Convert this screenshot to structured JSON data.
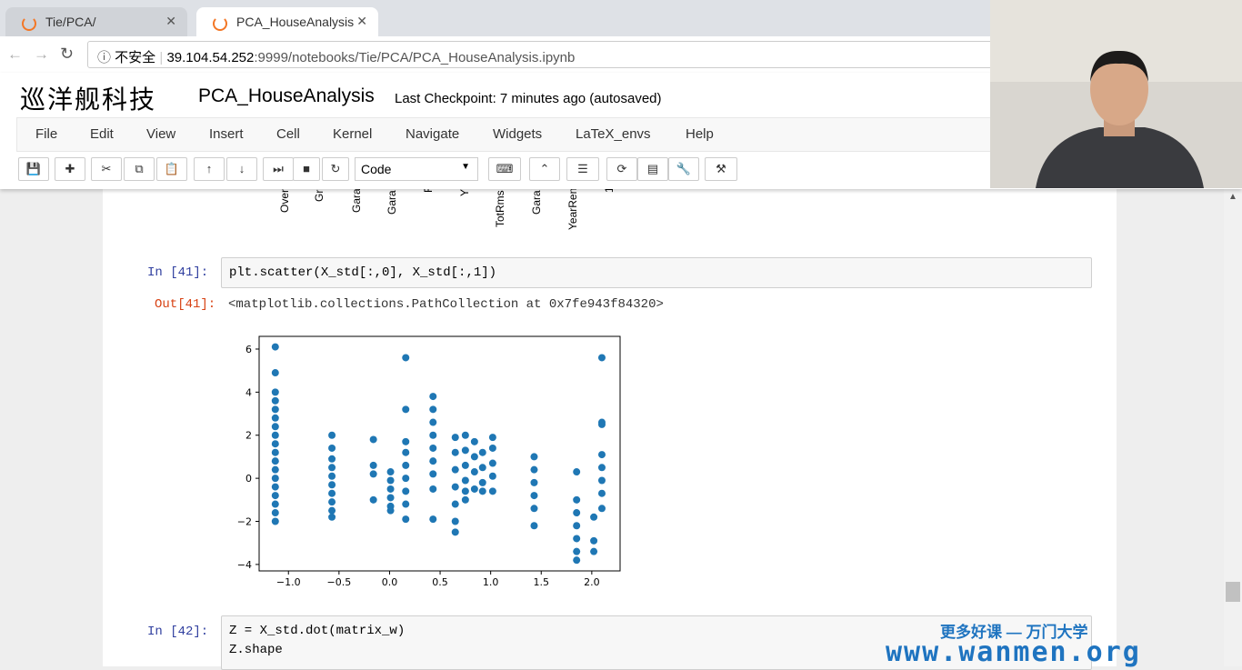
{
  "browser": {
    "tabs": [
      "Tie/PCA/",
      "PCA_HouseAnalysis"
    ],
    "security": "不安全",
    "url_host": "39.104.54.252",
    "url_rest": ":9999/notebooks/Tie/PCA/PCA_HouseAnalysis.ipynb"
  },
  "header": {
    "logo": "巡洋舰科技",
    "notebook_title": "PCA_HouseAnalysis",
    "checkpoint": "Last Checkpoint: 7 minutes ago (autosaved)"
  },
  "menu": [
    "File",
    "Edit",
    "View",
    "Insert",
    "Cell",
    "Kernel",
    "Navigate",
    "Widgets",
    "LaTeX_envs",
    "Help"
  ],
  "toolbar": {
    "cell_type": "Code"
  },
  "previous_output": {
    "labels": [
      "Over",
      "Gr",
      "Gara",
      "Gara",
      "F",
      "Y",
      "TotRms",
      "Gara",
      "YearRen",
      "1"
    ]
  },
  "cells": [
    {
      "prompt": "In [41]:",
      "code": [
        "plt.scatter(X_std[:,0], X_std[:,1])"
      ],
      "out_prompt": "Out[41]:",
      "output": "<matplotlib.collections.PathCollection at 0x7fe943f84320>"
    },
    {
      "prompt": "In [42]:",
      "code": [
        "Z = X_std.dot(matrix_w)",
        "Z.shape"
      ]
    }
  ],
  "watermark": {
    "line1": "更多好课 — 万门大学",
    "line2": "www.wanmen.org"
  },
  "chart_data": {
    "type": "scatter",
    "color": "#1f77b4",
    "xlim": [
      -1.29,
      2.28
    ],
    "ylim": [
      -4.3,
      6.59
    ],
    "xticks": [
      {
        "value": -1.0,
        "label": "−1.0"
      },
      {
        "value": -0.5,
        "label": "−0.5"
      },
      {
        "value": 0.0,
        "label": "0.0"
      },
      {
        "value": 0.5,
        "label": "0.5"
      },
      {
        "value": 1.0,
        "label": "1.0"
      },
      {
        "value": 1.5,
        "label": "1.5"
      },
      {
        "value": 2.0,
        "label": "2.0"
      }
    ],
    "yticks": [
      {
        "value": -4,
        "label": "−4"
      },
      {
        "value": -2,
        "label": "−2"
      },
      0,
      2,
      4,
      6
    ],
    "x": [
      -1.13,
      -1.13,
      -1.13,
      -1.13,
      -1.13,
      -1.13,
      -1.13,
      -1.13,
      -1.13,
      -1.13,
      -1.13,
      -1.13,
      -1.13,
      -1.13,
      -1.13,
      -1.13,
      -1.13,
      -1.13,
      -0.57,
      -0.57,
      -0.57,
      -0.57,
      -0.57,
      -0.57,
      -0.57,
      -0.57,
      -0.57,
      -0.57,
      -0.16,
      -0.16,
      -0.16,
      -0.16,
      0.01,
      0.01,
      0.01,
      0.01,
      0.01,
      0.01,
      0.16,
      0.16,
      0.16,
      0.16,
      0.16,
      0.16,
      0.16,
      0.16,
      0.16,
      0.43,
      0.43,
      0.43,
      0.43,
      0.43,
      0.43,
      0.43,
      0.43,
      0.43,
      0.65,
      0.65,
      0.65,
      0.65,
      0.65,
      0.65,
      0.65,
      0.75,
      0.75,
      0.75,
      0.75,
      0.75,
      0.75,
      0.84,
      0.84,
      0.84,
      0.84,
      0.92,
      0.92,
      0.92,
      0.92,
      1.02,
      1.02,
      1.02,
      1.02,
      1.02,
      1.43,
      1.43,
      1.43,
      1.43,
      1.43,
      1.43,
      1.85,
      1.85,
      1.85,
      1.85,
      1.85,
      1.85,
      1.85,
      2.02,
      2.02,
      2.02,
      2.1,
      2.1,
      2.1,
      2.1,
      2.1,
      2.1,
      2.1,
      2.1
    ],
    "values": [
      6.1,
      4.9,
      4.0,
      3.6,
      3.2,
      2.8,
      2.4,
      2.0,
      1.6,
      1.2,
      0.8,
      0.4,
      0,
      -0.4,
      -0.8,
      -1.2,
      -1.6,
      -2.0,
      2.0,
      1.4,
      0.9,
      0.5,
      0.1,
      -0.3,
      -0.7,
      -1.1,
      -1.5,
      -1.8,
      1.8,
      0.6,
      0.2,
      -1.0,
      0.3,
      -0.1,
      -0.5,
      -0.9,
      -1.3,
      -1.5,
      5.6,
      3.2,
      1.7,
      1.2,
      0.6,
      0,
      -0.6,
      -1.2,
      -1.9,
      3.8,
      3.2,
      2.6,
      2.0,
      1.4,
      0.8,
      0.2,
      -0.5,
      -1.9,
      1.9,
      1.2,
      0.4,
      -0.4,
      -1.2,
      -2.0,
      -2.5,
      2.0,
      1.3,
      0.6,
      -0.1,
      -0.6,
      -1.0,
      1.7,
      1.0,
      0.3,
      -0.5,
      1.2,
      0.5,
      -0.2,
      -0.6,
      1.9,
      1.4,
      0.7,
      0.1,
      -0.6,
      1.0,
      0.4,
      -0.2,
      -0.8,
      -1.4,
      -2.2,
      0.3,
      -1.0,
      -1.6,
      -2.2,
      -2.8,
      -3.4,
      -3.8,
      -1.8,
      -2.9,
      -3.4,
      5.6,
      2.6,
      2.5,
      1.1,
      0.5,
      -0.1,
      -0.7,
      -1.4
    ]
  }
}
